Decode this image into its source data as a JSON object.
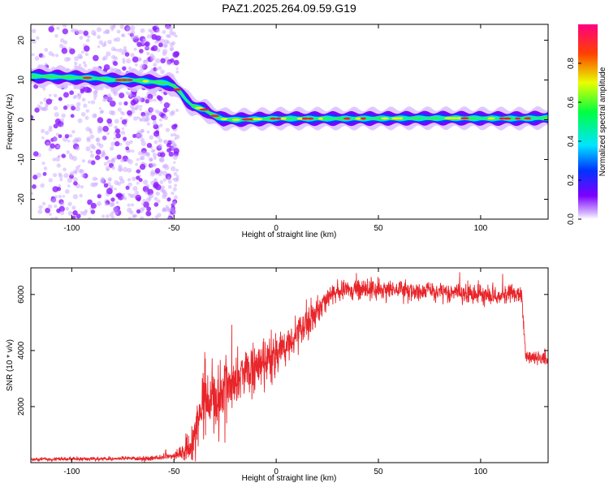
{
  "title": "PAZ1.2025.264.09.59.G19",
  "chart_data": [
    {
      "type": "heatmap",
      "title": "PAZ1.2025.264.09.59.G19",
      "xlabel": "Height of straight line (km)",
      "ylabel": "Frequency (Hz)",
      "xlim": [
        -120,
        133
      ],
      "ylim": [
        -25,
        24
      ],
      "x_ticks": [
        -100,
        -50,
        0,
        50,
        100
      ],
      "y_ticks": [
        -20,
        -10,
        0,
        10,
        20
      ],
      "ridge": {
        "x": [
          -120,
          -90,
          -80,
          -70,
          -60,
          -53,
          -50,
          -47,
          -44,
          -41,
          -38,
          -35,
          -32,
          -29,
          -26,
          -20,
          0,
          40,
          80,
          120,
          133
        ],
        "freq_hz": [
          11,
          10.5,
          10,
          10,
          9.5,
          9.2,
          8.5,
          7,
          5,
          3.5,
          3,
          2.5,
          1.5,
          0.7,
          0.2,
          0,
          0.3,
          0.3,
          0.4,
          0.3,
          0.5
        ]
      },
      "noise_region_x": [
        -120,
        -48
      ],
      "colorbar": {
        "label": "Normalized spectral amplitude",
        "range": [
          0,
          1
        ],
        "ticks": [
          "0.0",
          "0.2",
          "0.4",
          "0.6",
          "0.8"
        ]
      }
    },
    {
      "type": "line",
      "xlabel": "Height of straight line (km)",
      "ylabel": "SNR (10 * v/v)",
      "xlim": [
        -120,
        133
      ],
      "ylim": [
        0,
        6950
      ],
      "x_ticks": [
        -100,
        -50,
        0,
        50,
        100
      ],
      "y_ticks": [
        2000,
        4000,
        6000
      ],
      "series": [
        {
          "name": "SNR",
          "color": "#e8252a",
          "x": [
            -120,
            -60,
            -50,
            -45,
            -40,
            -38,
            -35,
            -32,
            -30,
            -28,
            -25,
            -20,
            -15,
            -10,
            -5,
            0,
            5,
            10,
            15,
            20,
            25,
            30,
            35,
            40,
            60,
            80,
            100,
            120,
            122,
            125,
            133
          ],
          "mean": [
            120,
            150,
            250,
            400,
            800,
            1600,
            2200,
            2500,
            2400,
            2000,
            2800,
            3000,
            3200,
            3400,
            3500,
            3900,
            4200,
            4600,
            5000,
            5400,
            5900,
            6100,
            6150,
            6200,
            6150,
            6100,
            6050,
            6000,
            3800,
            3750,
            3700
          ],
          "noise_amplitude": [
            30,
            40,
            80,
            150,
            400,
            500,
            550,
            600,
            600,
            600,
            550,
            500,
            450,
            450,
            400,
            400,
            350,
            300,
            300,
            250,
            200,
            200,
            180,
            170,
            170,
            170,
            170,
            170,
            120,
            120,
            120
          ]
        }
      ]
    }
  ]
}
